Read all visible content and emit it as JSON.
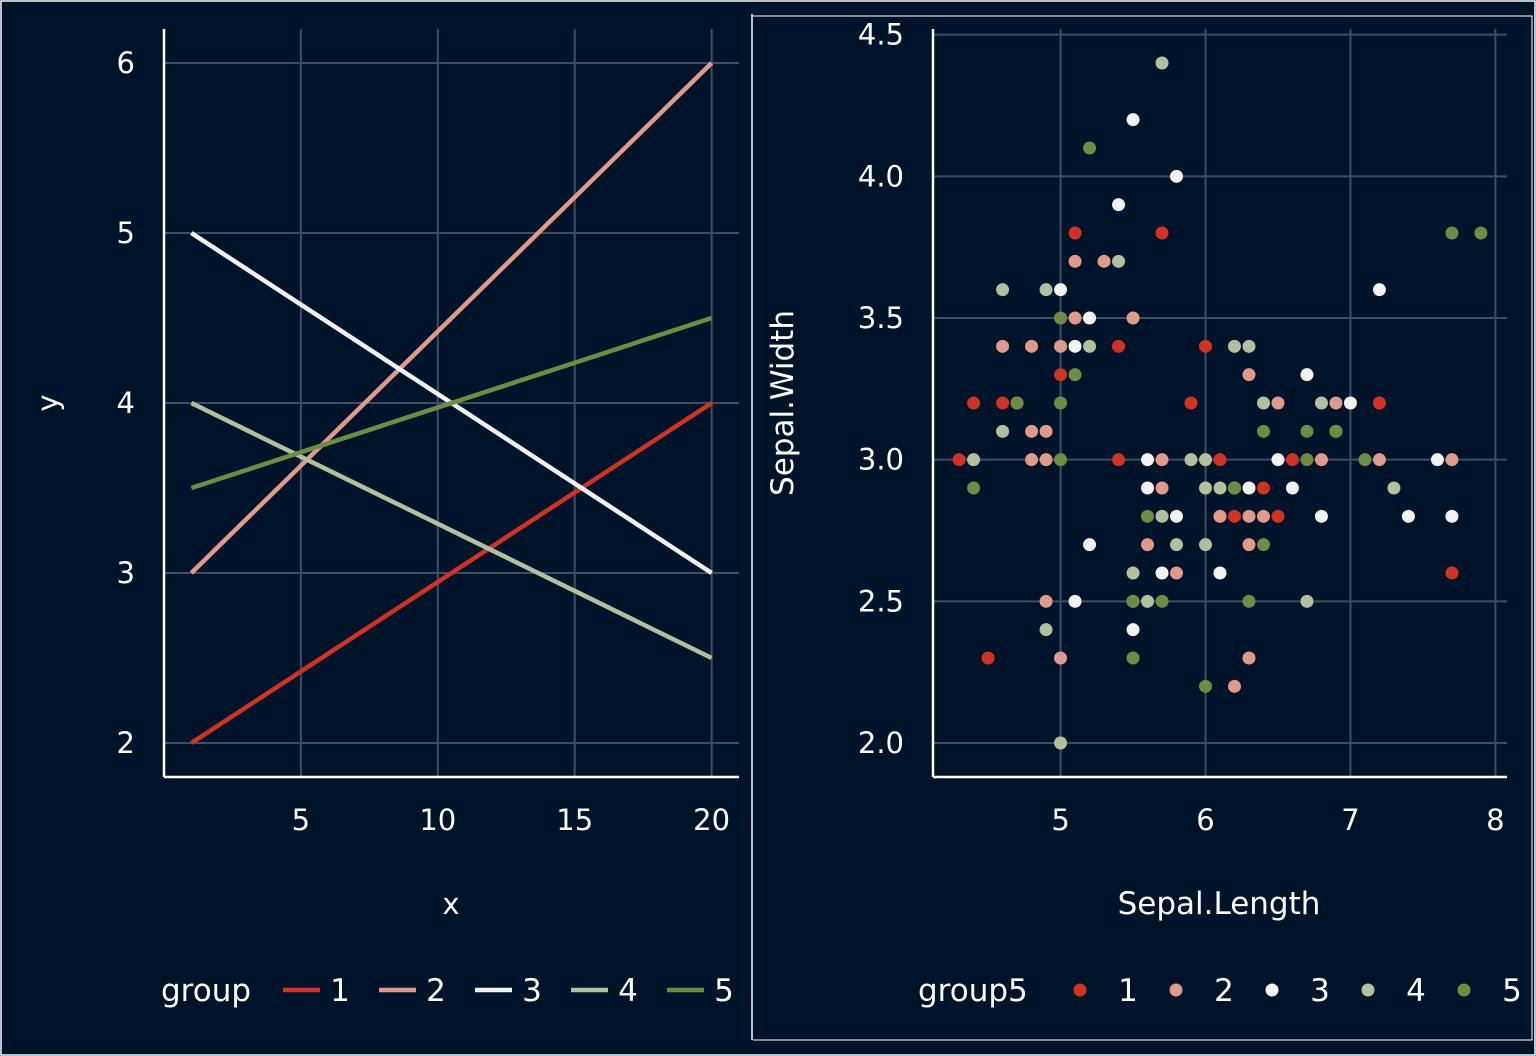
{
  "colors": {
    "background": "#001429",
    "grid": "#3D4E60",
    "axis": "#FFFFFF",
    "text": "#FFFFFF",
    "group": [
      "#D03324",
      "#E09A8B",
      "#F2F2F2",
      "#B2C0A0",
      "#6F8C45"
    ]
  },
  "chart_data": [
    {
      "type": "line",
      "xlabel": "x",
      "ylabel": "y",
      "xlim": [
        0,
        21
      ],
      "ylim": [
        1.8,
        6.2
      ],
      "xticks": [
        "5",
        "10",
        "15",
        "20"
      ],
      "yticks": [
        "2",
        "3",
        "4",
        "5",
        "6"
      ],
      "grid": true,
      "legend": {
        "title": "group",
        "position": "bottom",
        "labels": [
          "1",
          "2",
          "3",
          "4",
          "5"
        ]
      },
      "series": [
        {
          "name": "1",
          "x": [
            1,
            20
          ],
          "y": [
            2,
            4
          ]
        },
        {
          "name": "2",
          "x": [
            1,
            20
          ],
          "y": [
            3,
            6
          ]
        },
        {
          "name": "3",
          "x": [
            1,
            20
          ],
          "y": [
            5,
            3
          ]
        },
        {
          "name": "4",
          "x": [
            1,
            20
          ],
          "y": [
            4,
            2.5
          ]
        },
        {
          "name": "5",
          "x": [
            1,
            20
          ],
          "y": [
            3.5,
            4.5
          ]
        }
      ]
    },
    {
      "type": "scatter",
      "xlabel": "Sepal.Length",
      "ylabel": "Sepal.Width",
      "xlim": [
        4.12,
        8.08
      ],
      "ylim": [
        1.88,
        4.52
      ],
      "xticks": [
        "5",
        "6",
        "7",
        "8"
      ],
      "yticks": [
        "2.0",
        "2.5",
        "3.0",
        "3.5",
        "4.0",
        "4.5"
      ],
      "grid": true,
      "legend": {
        "title": "group5",
        "position": "bottom",
        "labels": [
          "1",
          "2",
          "3",
          "4",
          "5"
        ]
      },
      "series": [
        {
          "name": "1",
          "points": [
            [
              4.3,
              3.0
            ],
            [
              4.4,
              3.2
            ],
            [
              4.5,
              2.3
            ],
            [
              4.6,
              3.2
            ],
            [
              5.1,
              3.8
            ],
            [
              5.0,
              3.3
            ],
            [
              5.4,
              3.4
            ],
            [
              5.4,
              3.0
            ],
            [
              5.7,
              3.8
            ],
            [
              5.9,
              3.2
            ],
            [
              6.0,
              3.4
            ],
            [
              6.1,
              3.0
            ],
            [
              6.1,
              2.8
            ],
            [
              6.2,
              2.8
            ],
            [
              6.4,
              2.9
            ],
            [
              6.5,
              2.8
            ],
            [
              6.6,
              3.0
            ],
            [
              7.2,
              3.2
            ],
            [
              7.7,
              2.6
            ]
          ]
        },
        {
          "name": "2",
          "points": [
            [
              4.6,
              3.4
            ],
            [
              4.8,
              3.4
            ],
            [
              4.8,
              3.1
            ],
            [
              4.8,
              3.0
            ],
            [
              4.9,
              3.1
            ],
            [
              4.9,
              3.0
            ],
            [
              4.9,
              2.5
            ],
            [
              5.0,
              3.4
            ],
            [
              5.0,
              2.3
            ],
            [
              5.1,
              3.7
            ],
            [
              5.1,
              3.5
            ],
            [
              5.3,
              3.7
            ],
            [
              5.5,
              3.5
            ],
            [
              5.6,
              2.7
            ],
            [
              5.7,
              3.0
            ],
            [
              5.7,
              2.9
            ],
            [
              5.8,
              2.6
            ],
            [
              6.1,
              2.8
            ],
            [
              6.2,
              2.2
            ],
            [
              6.3,
              3.3
            ],
            [
              6.3,
              2.8
            ],
            [
              6.3,
              2.7
            ],
            [
              6.3,
              2.3
            ],
            [
              6.4,
              2.8
            ],
            [
              6.5,
              3.2
            ],
            [
              6.8,
              3.0
            ],
            [
              6.9,
              3.2
            ],
            [
              7.2,
              3.0
            ],
            [
              7.7,
              3.0
            ]
          ]
        },
        {
          "name": "3",
          "points": [
            [
              5.0,
              3.6
            ],
            [
              5.1,
              3.4
            ],
            [
              5.1,
              2.5
            ],
            [
              5.2,
              3.5
            ],
            [
              5.2,
              2.7
            ],
            [
              5.4,
              3.9
            ],
            [
              5.5,
              4.2
            ],
            [
              5.5,
              2.4
            ],
            [
              5.6,
              3.0
            ],
            [
              5.6,
              2.9
            ],
            [
              5.7,
              2.6
            ],
            [
              5.8,
              4.0
            ],
            [
              5.8,
              2.8
            ],
            [
              6.1,
              2.6
            ],
            [
              6.3,
              2.9
            ],
            [
              6.5,
              3.0
            ],
            [
              6.6,
              2.9
            ],
            [
              6.7,
              3.3
            ],
            [
              6.8,
              2.8
            ],
            [
              7.0,
              3.2
            ],
            [
              7.2,
              3.6
            ],
            [
              7.4,
              2.8
            ],
            [
              7.6,
              3.0
            ],
            [
              7.7,
              2.8
            ]
          ]
        },
        {
          "name": "4",
          "points": [
            [
              4.4,
              3.0
            ],
            [
              4.6,
              3.6
            ],
            [
              4.6,
              3.1
            ],
            [
              4.7,
              3.2
            ],
            [
              4.9,
              3.6
            ],
            [
              4.9,
              2.4
            ],
            [
              5.0,
              2.0
            ],
            [
              5.2,
              3.4
            ],
            [
              5.4,
              3.7
            ],
            [
              5.5,
              2.6
            ],
            [
              5.5,
              2.5
            ],
            [
              5.6,
              2.5
            ],
            [
              5.7,
              4.4
            ],
            [
              5.7,
              2.8
            ],
            [
              5.8,
              2.7
            ],
            [
              5.9,
              3.0
            ],
            [
              6.0,
              3.0
            ],
            [
              6.0,
              2.9
            ],
            [
              6.0,
              2.7
            ],
            [
              6.1,
              2.9
            ],
            [
              6.2,
              3.4
            ],
            [
              6.2,
              2.9
            ],
            [
              6.3,
              3.4
            ],
            [
              6.4,
              3.2
            ],
            [
              6.7,
              2.5
            ],
            [
              6.8,
              3.2
            ],
            [
              6.9,
              3.1
            ],
            [
              7.3,
              2.9
            ]
          ]
        },
        {
          "name": "5",
          "points": [
            [
              4.4,
              2.9
            ],
            [
              4.7,
              3.2
            ],
            [
              5.0,
              3.5
            ],
            [
              5.0,
              3.2
            ],
            [
              5.0,
              3.0
            ],
            [
              5.1,
              3.3
            ],
            [
              5.2,
              4.1
            ],
            [
              5.5,
              2.5
            ],
            [
              5.5,
              2.3
            ],
            [
              5.6,
              2.8
            ],
            [
              5.7,
              2.5
            ],
            [
              6.0,
              2.2
            ],
            [
              6.2,
              2.9
            ],
            [
              6.3,
              2.5
            ],
            [
              6.4,
              3.1
            ],
            [
              6.4,
              2.7
            ],
            [
              6.7,
              3.1
            ],
            [
              6.7,
              3.0
            ],
            [
              6.9,
              3.1
            ],
            [
              7.1,
              3.0
            ],
            [
              7.7,
              3.8
            ],
            [
              7.9,
              3.8
            ]
          ]
        }
      ]
    }
  ]
}
